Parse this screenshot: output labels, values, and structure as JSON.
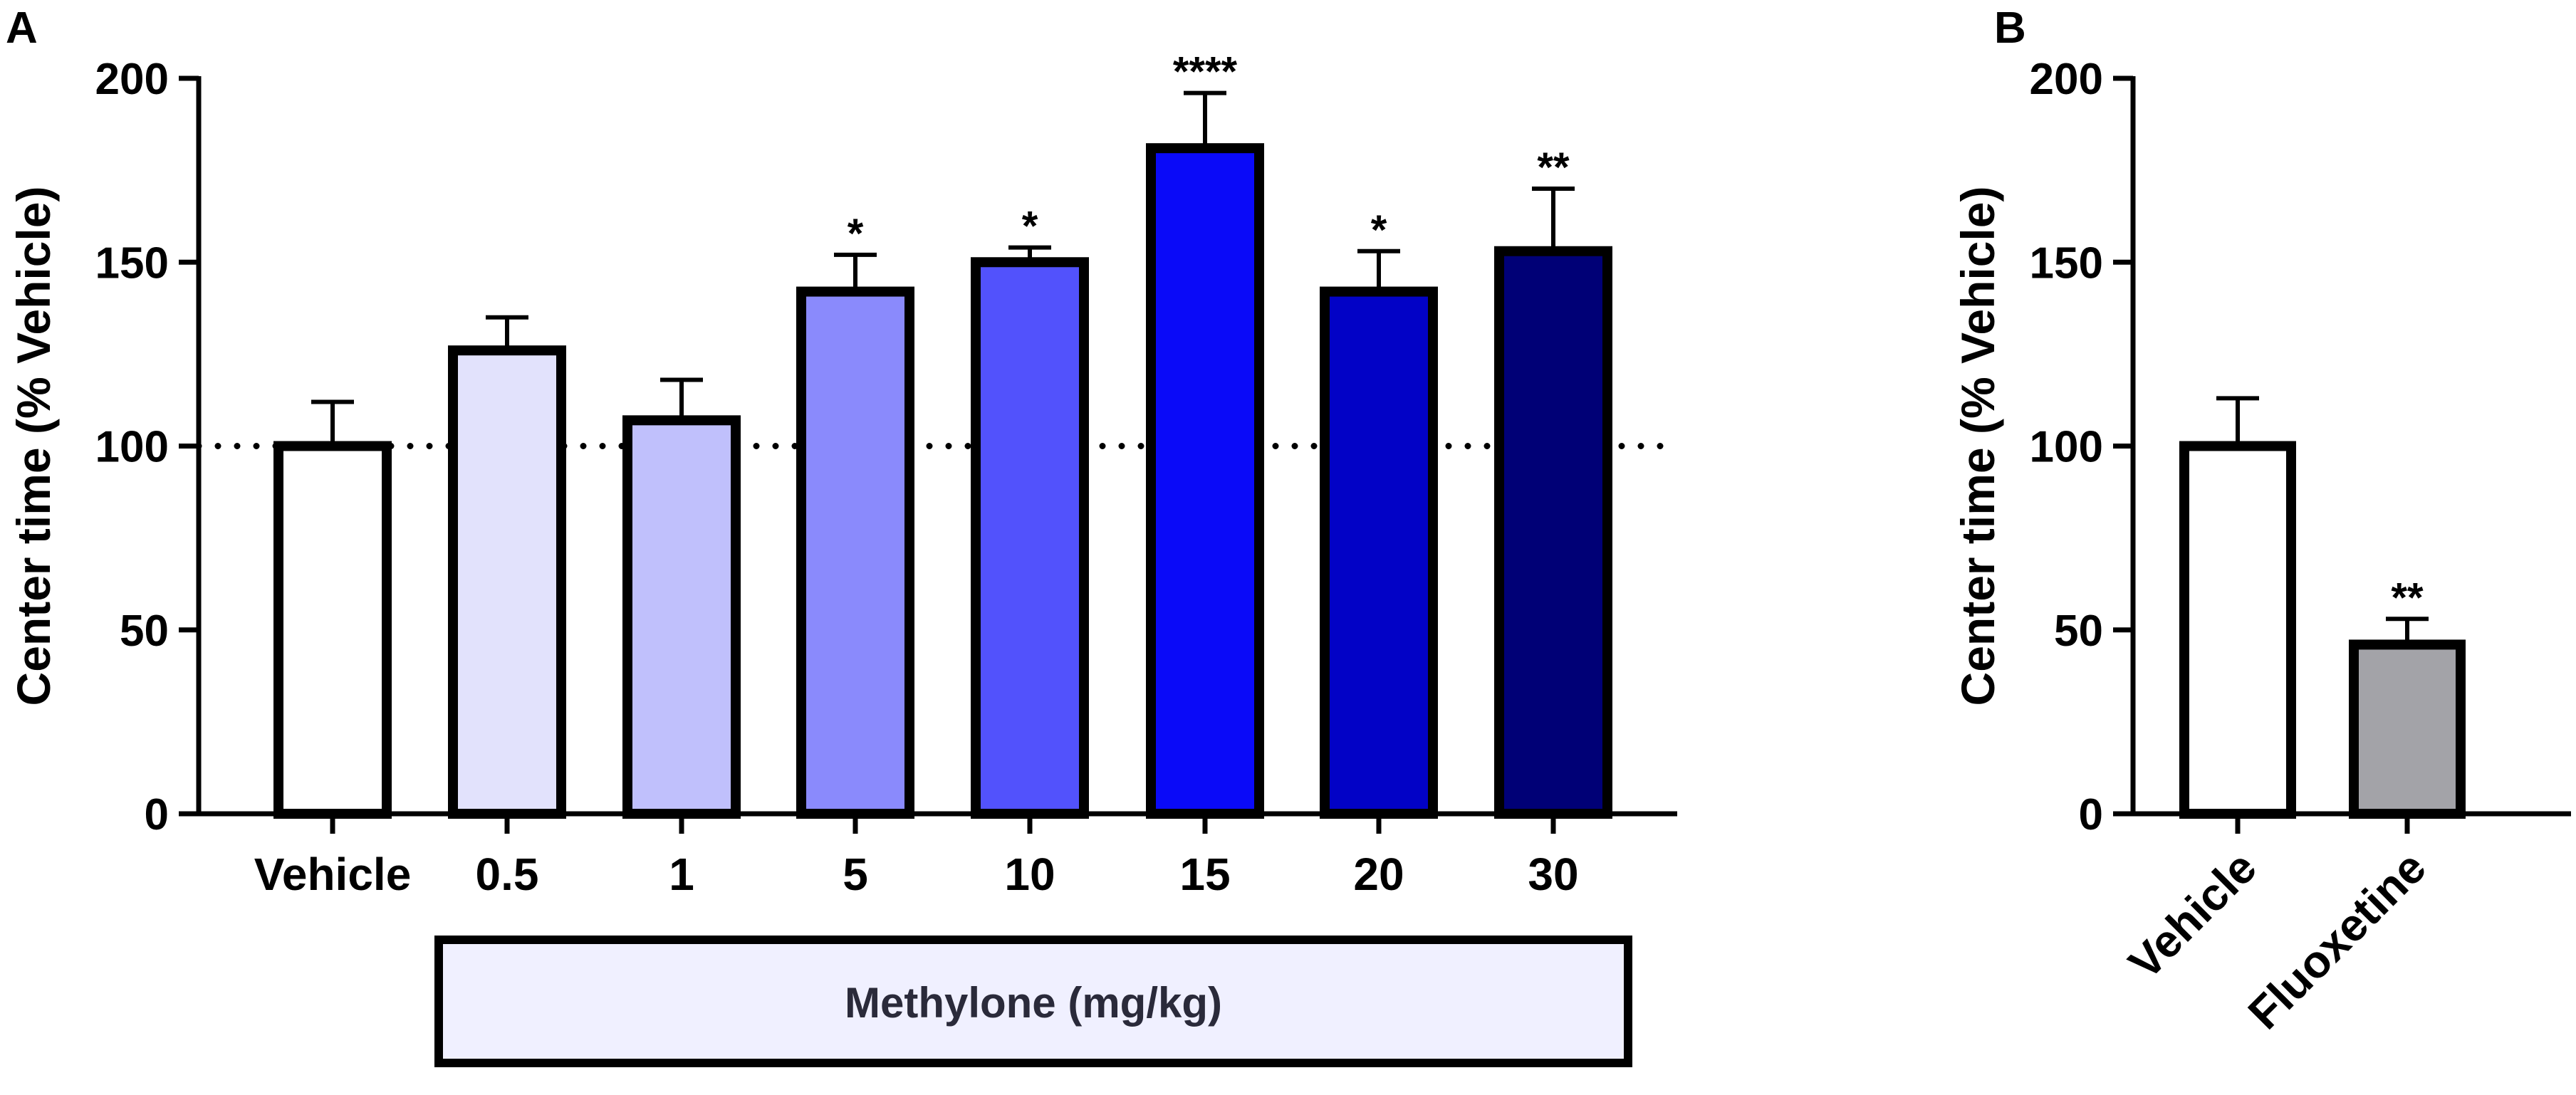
{
  "panels": [
    {
      "letter": "A"
    },
    {
      "letter": "B"
    }
  ],
  "chart_data": [
    {
      "type": "bar",
      "panel": "A",
      "ylabel": "Center time (% Vehicle)",
      "ylim": [
        0,
        200
      ],
      "yticks": [
        0,
        50,
        100,
        150,
        200
      ],
      "categories": [
        "Vehicle",
        "0.5",
        "1",
        "5",
        "10",
        "15",
        "20",
        "30"
      ],
      "values": [
        100,
        126,
        107,
        142,
        150,
        181,
        142,
        153
      ],
      "errors": [
        12,
        9,
        11,
        10,
        4,
        15,
        11,
        17
      ],
      "significance": [
        "",
        "",
        "",
        "*",
        "*",
        "****",
        "*",
        "**"
      ],
      "colors": [
        "#ffffff",
        "#e2e2fc",
        "#c0c0fc",
        "#8a8afc",
        "#5252fc",
        "#0a0af8",
        "#0202c6",
        "#000076"
      ],
      "reference_line": 100,
      "group_label": "Methylone (mg/kg)",
      "group_color": "#f0f0ff"
    },
    {
      "type": "bar",
      "panel": "B",
      "ylabel": "Center time (% Vehicle)",
      "ylim": [
        0,
        200
      ],
      "yticks": [
        0,
        50,
        100,
        150,
        200
      ],
      "categories": [
        "Vehicle",
        "Fluoxetine"
      ],
      "values": [
        100,
        46
      ],
      "errors": [
        13,
        7
      ],
      "significance": [
        "",
        "**"
      ],
      "colors": [
        "#ffffff",
        "#a3a3a8"
      ]
    }
  ]
}
